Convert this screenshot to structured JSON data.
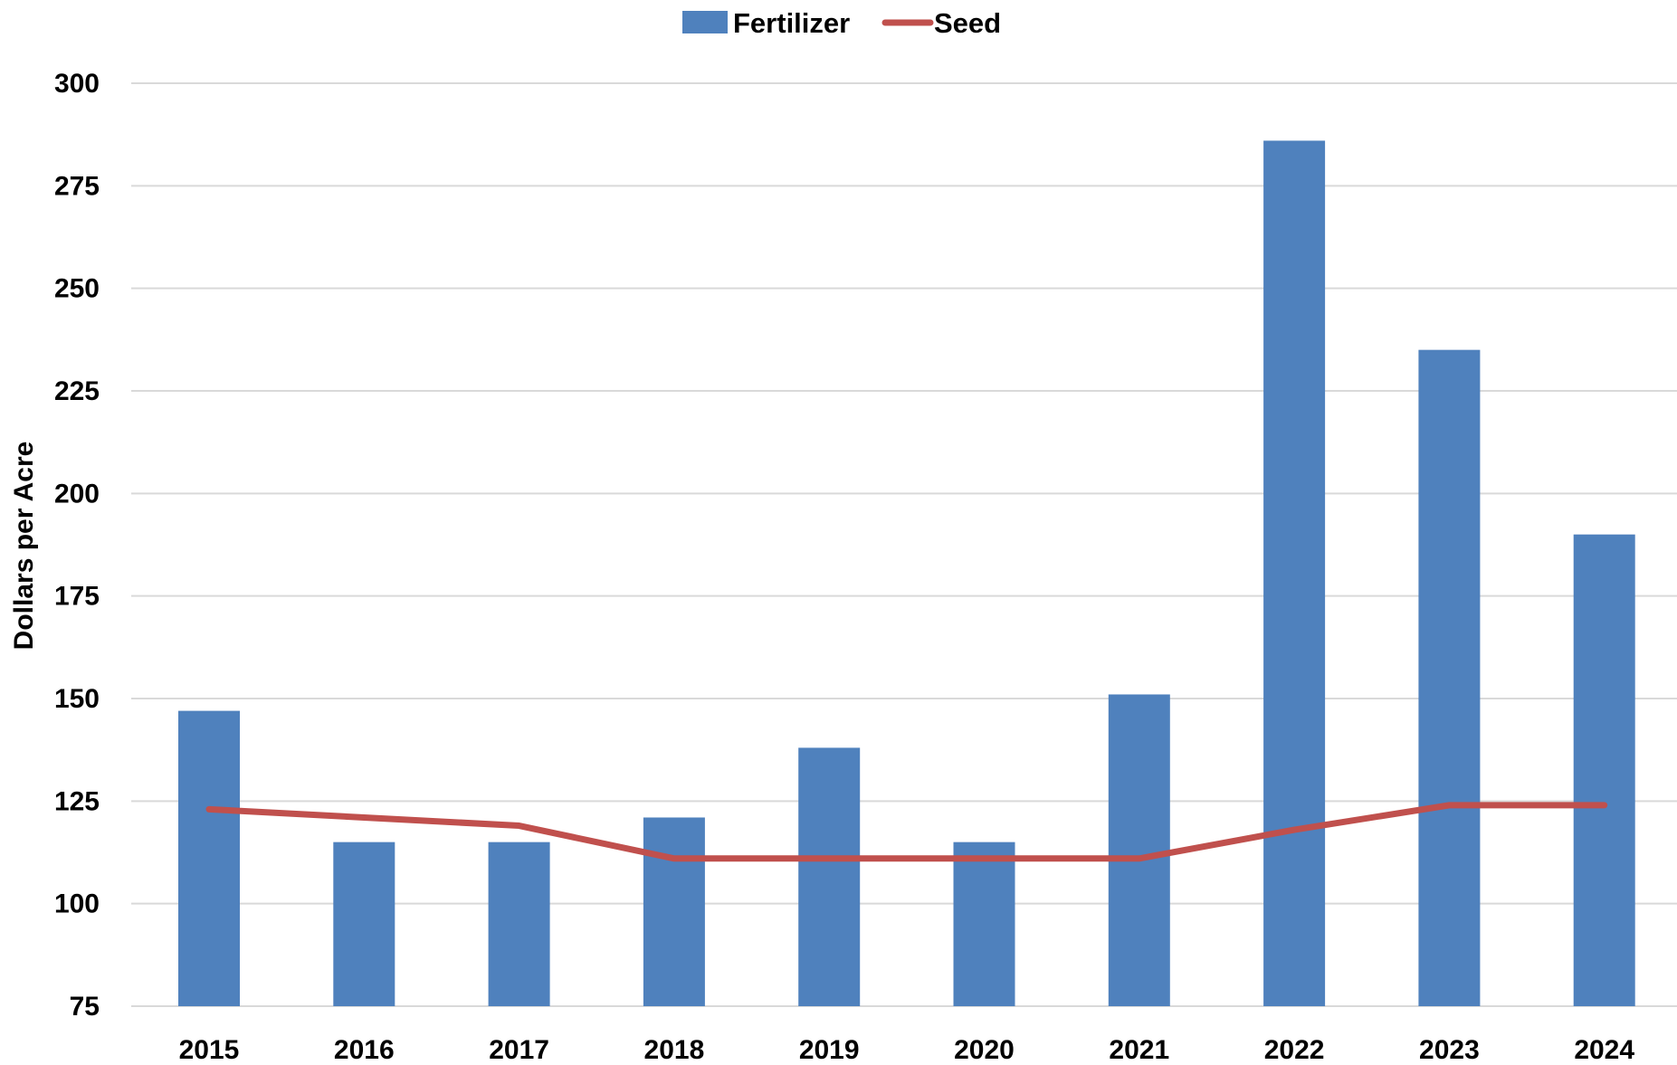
{
  "chart_data": {
    "type": "bar",
    "title": "",
    "xlabel": "",
    "ylabel": "Dollars per Acre",
    "categories": [
      "2015",
      "2016",
      "2017",
      "2018",
      "2019",
      "2020",
      "2021",
      "2022",
      "2023",
      "2024"
    ],
    "series": [
      {
        "name": "Fertilizer",
        "type": "bar",
        "color": "#4F81BD",
        "values": [
          147,
          115,
          115,
          121,
          138,
          115,
          151,
          286,
          235,
          190
        ]
      },
      {
        "name": "Seed",
        "type": "line",
        "color": "#C0504D",
        "values": [
          123,
          121,
          119,
          111,
          111,
          111,
          111,
          118,
          124,
          124
        ]
      }
    ],
    "ylim": [
      75,
      300
    ],
    "yticks": [
      75,
      100,
      125,
      150,
      175,
      200,
      225,
      250,
      275,
      300
    ],
    "grid": true,
    "legend": "top-center"
  }
}
